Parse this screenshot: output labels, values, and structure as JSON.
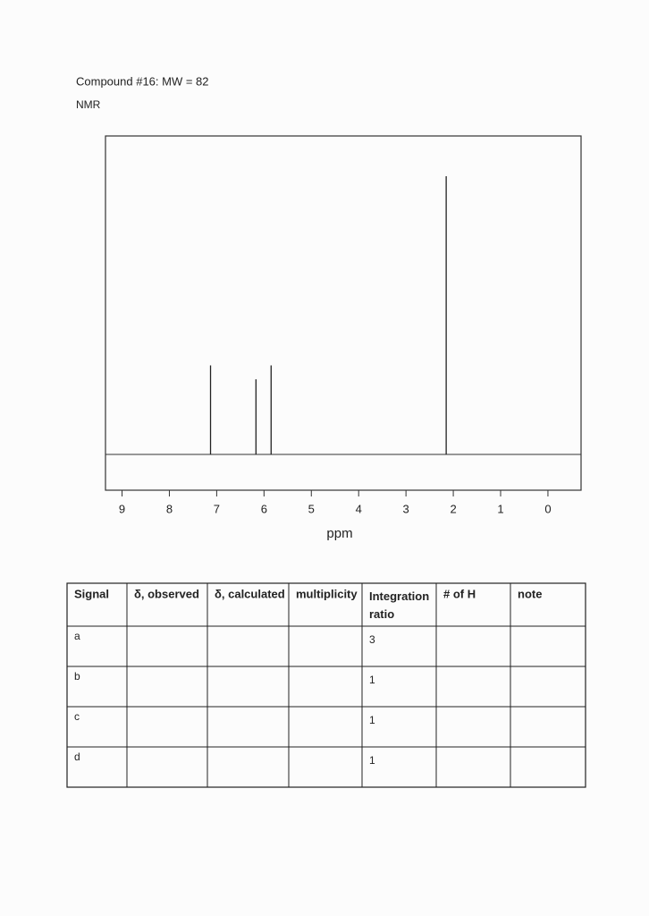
{
  "header": {
    "title": "Compound #16: MW = 82",
    "subtitle": "NMR"
  },
  "chart_data": {
    "type": "stick",
    "x_label": "ppm",
    "x": [
      7.13,
      6.17,
      5.85,
      2.15
    ],
    "values": [
      0.32,
      0.27,
      0.32,
      1.0
    ],
    "color": "#222222",
    "xlim": [
      9.35,
      -0.7
    ],
    "xticks": [
      9,
      8,
      7,
      6,
      5,
      4,
      3,
      2,
      1,
      0
    ],
    "ylim": [
      0,
      1
    ]
  },
  "table": {
    "headers": [
      "Signal",
      "δ, observed",
      "δ, calculated",
      "multiplicity",
      "Integration ratio",
      "# of H",
      "note"
    ],
    "rows": [
      {
        "signal": "a",
        "integration": "3"
      },
      {
        "signal": "b",
        "integration": "1"
      },
      {
        "signal": "c",
        "integration": "1"
      },
      {
        "signal": "d",
        "integration": "1"
      }
    ]
  }
}
